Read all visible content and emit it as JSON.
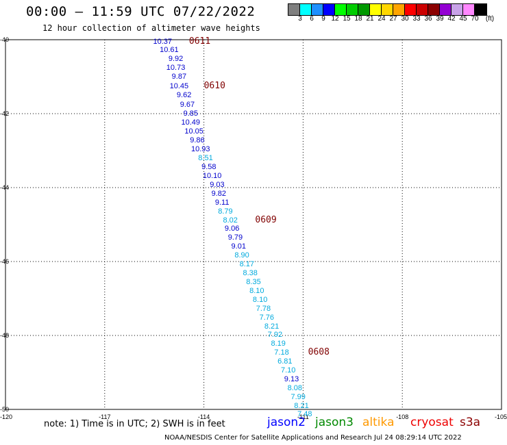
{
  "title": "00:00 – 11:59 UTC 07/22/2022",
  "subtitle": "12 hour collection of altimeter wave heights",
  "colorbar": {
    "colors": [
      "#7f7f7f",
      "#00ffff",
      "#1e90ff",
      "#0000ff",
      "#00ff00",
      "#00cc00",
      "#009900",
      "#ffff00",
      "#ffd700",
      "#ffa500",
      "#ff0000",
      "#cc0000",
      "#8b0000",
      "#9400d3",
      "#c8a2e8",
      "#ff88ff",
      "#000000"
    ],
    "labels": [
      "3",
      "6",
      "9",
      "12",
      "15",
      "18",
      "21",
      "24",
      "27",
      "30",
      "33",
      "36",
      "39",
      "42",
      "45",
      "70",
      "(ft)"
    ]
  },
  "map": {
    "lat_labels": [
      "-40",
      "-42",
      "-44",
      "-46",
      "-48",
      "-50"
    ],
    "lon_labels": [
      "-120",
      "-117",
      "-114",
      "-111",
      "-108",
      "-105"
    ]
  },
  "observations": [
    {
      "lat": -40.05,
      "lon": -115.25,
      "swh": "10.37",
      "color": "#0000cc"
    },
    {
      "lat": -40.28,
      "lon": -115.05,
      "swh": "10.61",
      "color": "#0000cc"
    },
    {
      "lat": -40.52,
      "lon": -114.85,
      "swh": "9.92",
      "color": "#0000cc"
    },
    {
      "lat": -40.76,
      "lon": -114.85,
      "swh": "10.73",
      "color": "#0000cc"
    },
    {
      "lat": -41.0,
      "lon": -114.75,
      "swh": "9.87",
      "color": "#0000cc"
    },
    {
      "lat": -41.26,
      "lon": -114.75,
      "swh": "10.45",
      "color": "#0000cc"
    },
    {
      "lat": -41.5,
      "lon": -114.6,
      "swh": "9.62",
      "color": "#0000cc"
    },
    {
      "lat": -41.75,
      "lon": -114.5,
      "swh": "9.67",
      "color": "#0000cc"
    },
    {
      "lat": -42.0,
      "lon": -114.4,
      "swh": "9.85",
      "color": "#0000cc"
    },
    {
      "lat": -42.24,
      "lon": -114.4,
      "swh": "10.49",
      "color": "#0000cc"
    },
    {
      "lat": -42.48,
      "lon": -114.3,
      "swh": "10.05",
      "color": "#0000cc"
    },
    {
      "lat": -42.73,
      "lon": -114.2,
      "swh": "9.86",
      "color": "#0000cc"
    },
    {
      "lat": -42.97,
      "lon": -114.1,
      "swh": "10.93",
      "color": "#0000cc"
    },
    {
      "lat": -43.21,
      "lon": -113.95,
      "swh": "8.51",
      "color": "#00aadd"
    },
    {
      "lat": -43.45,
      "lon": -113.85,
      "swh": "9.58",
      "color": "#0000cc"
    },
    {
      "lat": -43.69,
      "lon": -113.75,
      "swh": "10.10",
      "color": "#0000cc"
    },
    {
      "lat": -43.93,
      "lon": -113.6,
      "swh": "9.03",
      "color": "#0000cc"
    },
    {
      "lat": -44.17,
      "lon": -113.55,
      "swh": "9.82",
      "color": "#0000cc"
    },
    {
      "lat": -44.41,
      "lon": -113.45,
      "swh": "9.11",
      "color": "#0000cc"
    },
    {
      "lat": -44.65,
      "lon": -113.35,
      "swh": "8.79",
      "color": "#00aadd"
    },
    {
      "lat": -44.89,
      "lon": -113.2,
      "swh": "8.02",
      "color": "#00aadd"
    },
    {
      "lat": -45.12,
      "lon": -113.15,
      "swh": "9.06",
      "color": "#0000cc"
    },
    {
      "lat": -45.36,
      "lon": -113.05,
      "swh": "9.79",
      "color": "#0000cc"
    },
    {
      "lat": -45.6,
      "lon": -112.95,
      "swh": "9.01",
      "color": "#0000cc"
    },
    {
      "lat": -45.84,
      "lon": -112.85,
      "swh": "8.90",
      "color": "#00aadd"
    },
    {
      "lat": -46.08,
      "lon": -112.7,
      "swh": "8.17",
      "color": "#00aadd"
    },
    {
      "lat": -46.32,
      "lon": -112.6,
      "swh": "8.38",
      "color": "#00aadd"
    },
    {
      "lat": -46.55,
      "lon": -112.5,
      "swh": "8.35",
      "color": "#00aadd"
    },
    {
      "lat": -46.79,
      "lon": -112.4,
      "swh": "8.10",
      "color": "#00aadd"
    },
    {
      "lat": -47.03,
      "lon": -112.3,
      "swh": "8.10",
      "color": "#00aadd"
    },
    {
      "lat": -47.27,
      "lon": -112.2,
      "swh": "7.78",
      "color": "#00aadd"
    },
    {
      "lat": -47.51,
      "lon": -112.1,
      "swh": "7.76",
      "color": "#00aadd"
    },
    {
      "lat": -47.75,
      "lon": -111.95,
      "swh": "8.21",
      "color": "#00aadd"
    },
    {
      "lat": -47.99,
      "lon": -111.85,
      "swh": "7.92",
      "color": "#00aadd"
    },
    {
      "lat": -48.23,
      "lon": -111.75,
      "swh": "8.19",
      "color": "#00aadd"
    },
    {
      "lat": -48.46,
      "lon": -111.65,
      "swh": "7.18",
      "color": "#00aadd"
    },
    {
      "lat": -48.7,
      "lon": -111.55,
      "swh": "6.81",
      "color": "#00aadd"
    },
    {
      "lat": -48.94,
      "lon": -111.45,
      "swh": "7.10",
      "color": "#00aadd"
    },
    {
      "lat": -49.18,
      "lon": -111.35,
      "swh": "9.13",
      "color": "#0000cc"
    },
    {
      "lat": -49.42,
      "lon": -111.25,
      "swh": "8.08",
      "color": "#00aadd"
    },
    {
      "lat": -49.66,
      "lon": -111.15,
      "swh": "7.99",
      "color": "#00aadd"
    },
    {
      "lat": -49.9,
      "lon": -111.05,
      "swh": "8.21",
      "color": "#00aadd"
    },
    {
      "lat": -50.13,
      "lon": -110.95,
      "swh": "7.48",
      "color": "#00aadd"
    }
  ],
  "pass_times": [
    {
      "lat": -40.05,
      "lon": -114.45,
      "label": "0611"
    },
    {
      "lat": -41.26,
      "lon": -114.0,
      "label": "0610"
    },
    {
      "lat": -44.89,
      "lon": -112.45,
      "label": "0609"
    },
    {
      "lat": -48.46,
      "lon": -110.85,
      "label": "0608"
    }
  ],
  "note": "note: 1) Time is in UTC; 2) SWH is in feet",
  "legend": [
    {
      "name": "jason2",
      "color": "#0000ff"
    },
    {
      "name": "jason3",
      "color": "#008800"
    },
    {
      "name": "altika",
      "color": "#ff9900"
    },
    {
      "name": "cryosat",
      "color": "#ee0000"
    },
    {
      "name": "s3a",
      "color": "#8b0000"
    }
  ],
  "footer": "NOAA/NESDIS Center for Satellite Applications and Research   Jul 24 08:29:14 UTC 2022"
}
